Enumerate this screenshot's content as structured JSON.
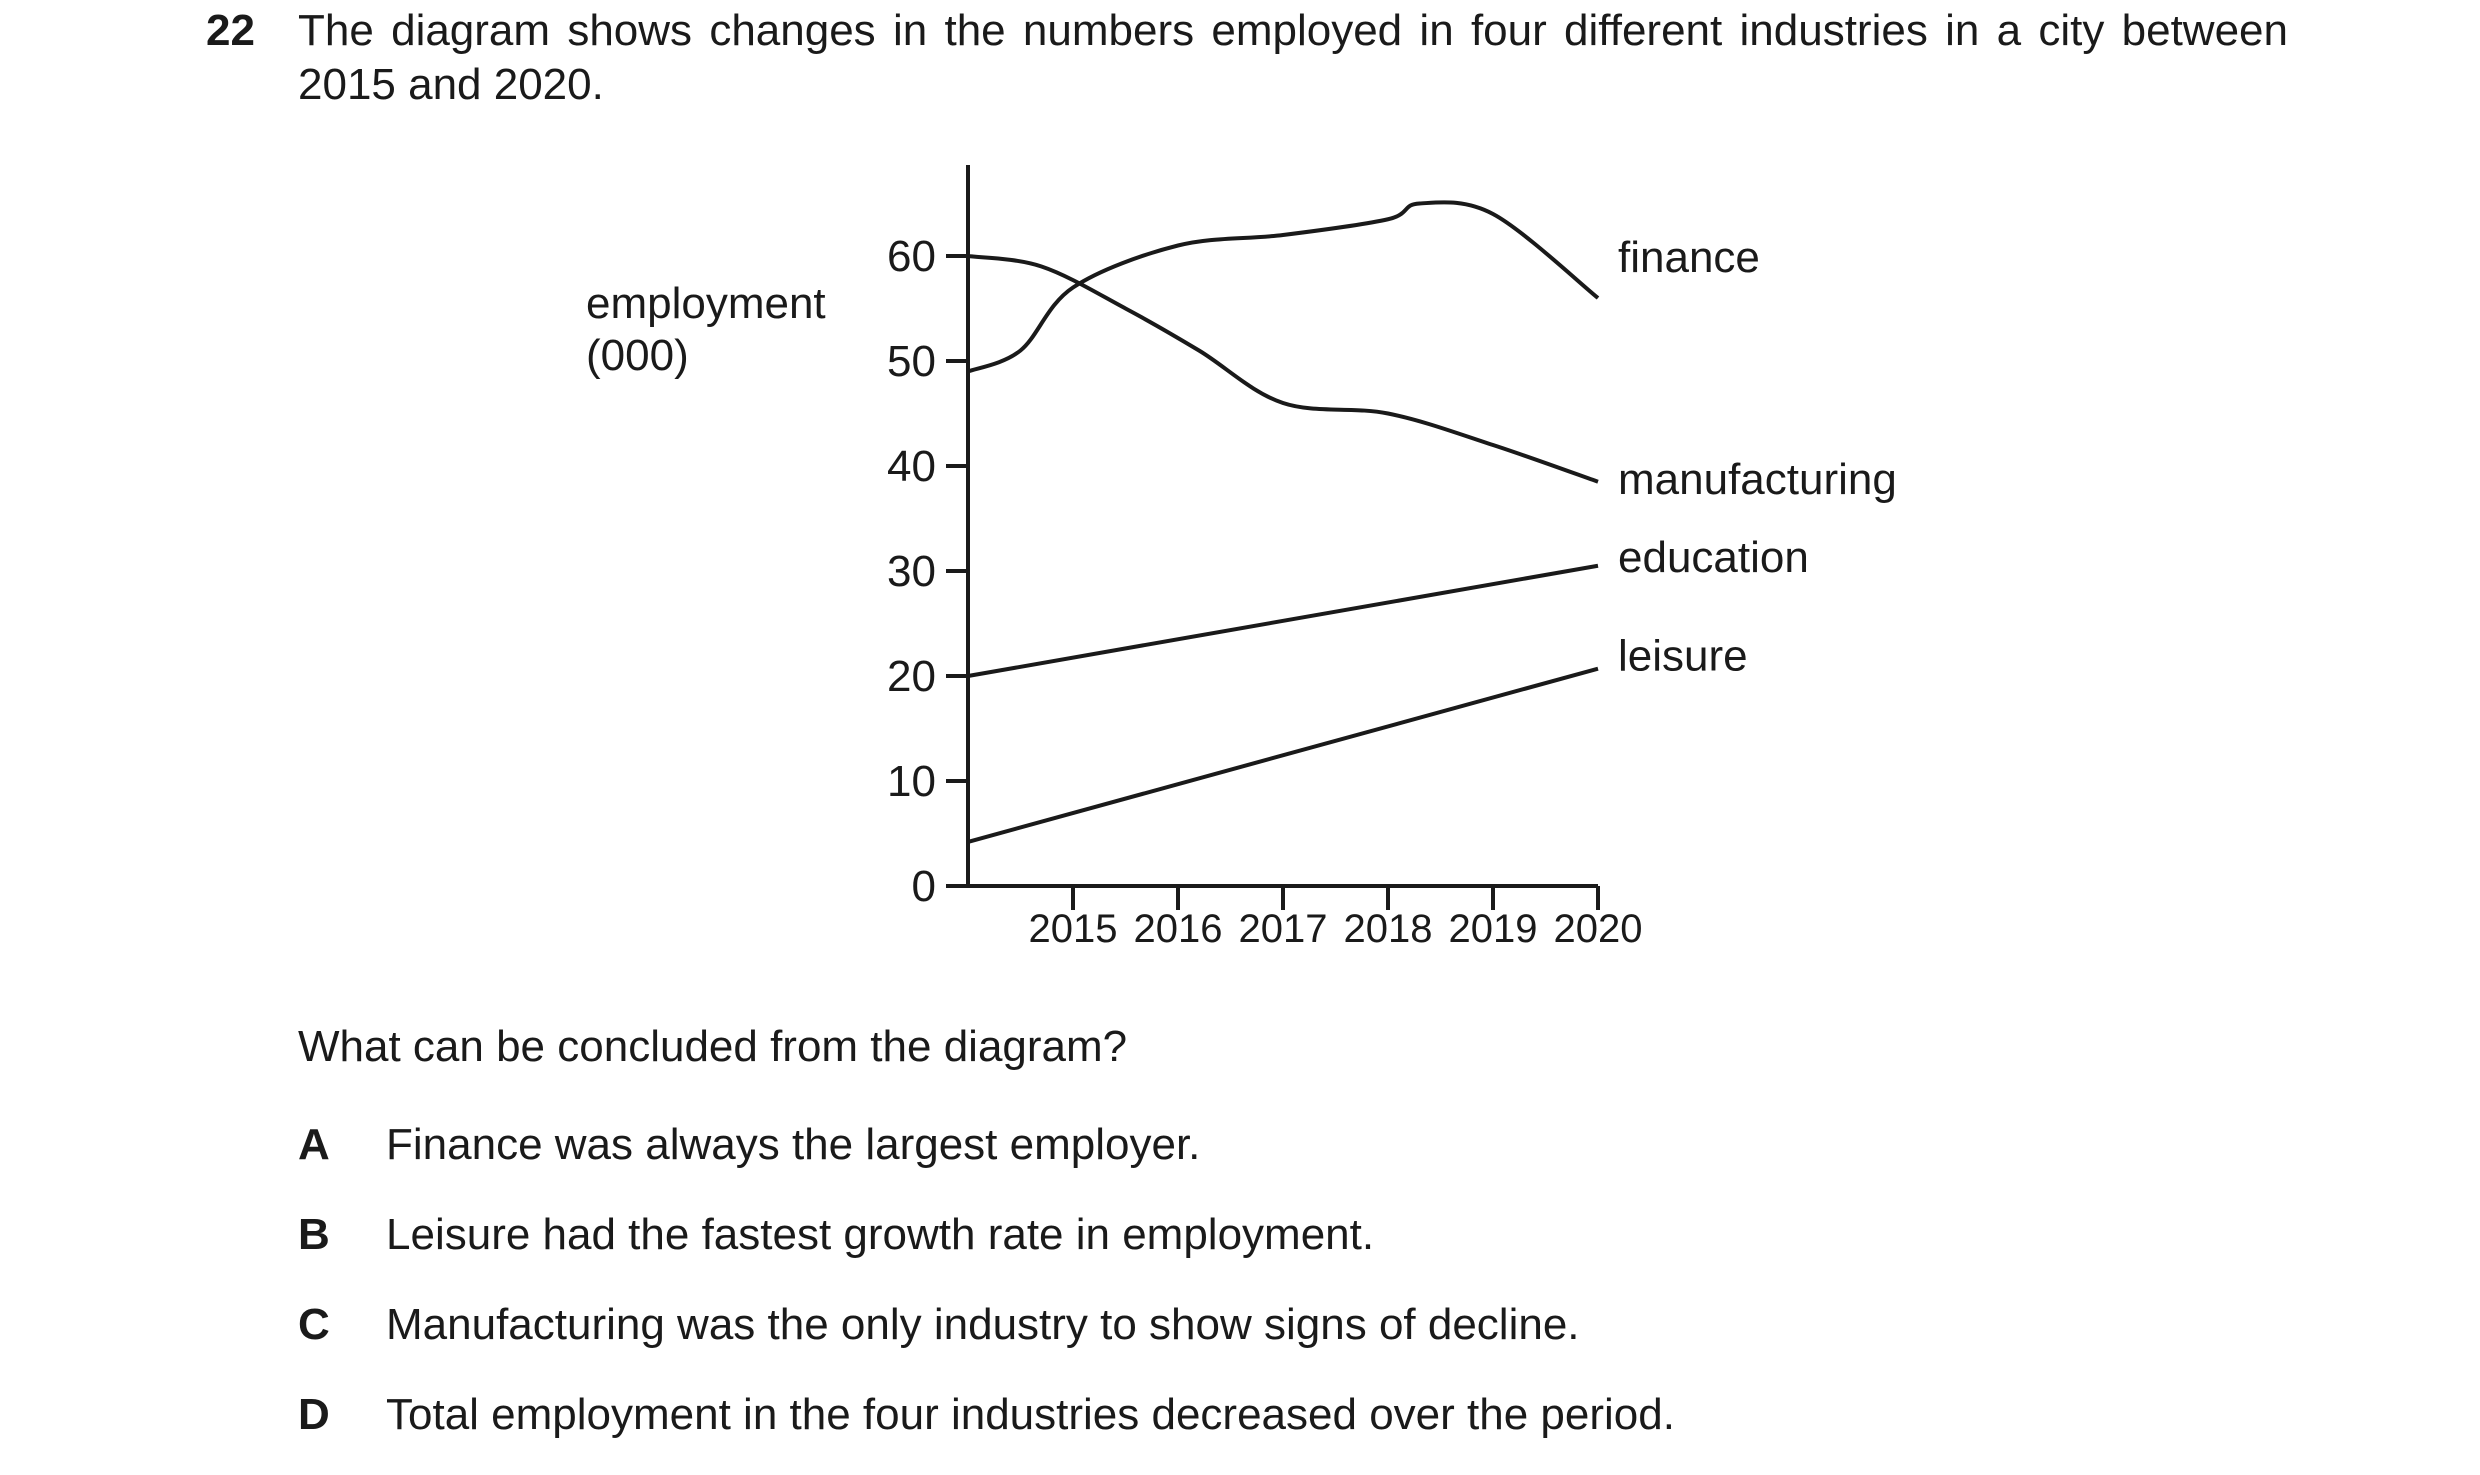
{
  "question": {
    "number": "22",
    "stem": "The diagram shows changes in the numbers employed in four different industries in a city between 2015 and 2020.",
    "prompt": "What can be concluded from the diagram?",
    "options": [
      {
        "letter": "A",
        "text": "Finance was always the largest employer."
      },
      {
        "letter": "B",
        "text": "Leisure had the fastest growth rate in employment."
      },
      {
        "letter": "C",
        "text": "Manufacturing was the only industry to show signs of decline."
      },
      {
        "letter": "D",
        "text": "Total employment in the four industries decreased over the period."
      }
    ]
  },
  "chart_data": {
    "type": "line",
    "ylabel_line1": "employment",
    "ylabel_line2": "(000)",
    "yticks": [
      0,
      10,
      20,
      30,
      40,
      50,
      60
    ],
    "xticks": [
      "2015",
      "2016",
      "2017",
      "2018",
      "2019",
      "2020"
    ],
    "ylim": [
      0,
      68
    ],
    "grid": false,
    "series": [
      {
        "name": "finance",
        "x": [
          2014,
          2014.5,
          2015,
          2016,
          2017,
          2018,
          2018.3,
          2019,
          2020
        ],
        "y": [
          49,
          51,
          57,
          61,
          62,
          63.5,
          65,
          64,
          56
        ]
      },
      {
        "name": "manufacturing",
        "x": [
          2014,
          2014.7,
          2015.5,
          2016.2,
          2017,
          2018,
          2019,
          2020
        ],
        "y": [
          60,
          59,
          55,
          51,
          46,
          45,
          42,
          38.5
        ]
      },
      {
        "name": "education",
        "x": [
          2014,
          2020
        ],
        "y": [
          20,
          30.5
        ]
      },
      {
        "name": "leisure",
        "x": [
          2014,
          2020
        ],
        "y": [
          4.2,
          20.7
        ]
      }
    ]
  }
}
